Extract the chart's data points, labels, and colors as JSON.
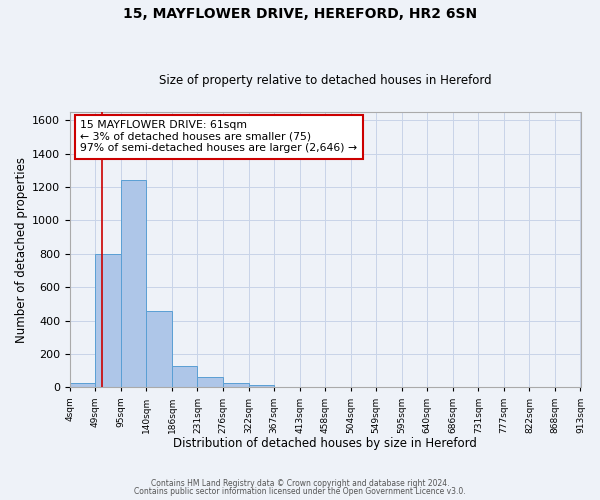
{
  "title1": "15, MAYFLOWER DRIVE, HEREFORD, HR2 6SN",
  "title2": "Size of property relative to detached houses in Hereford",
  "xlabel": "Distribution of detached houses by size in Hereford",
  "ylabel": "Number of detached properties",
  "bin_edges": [
    4,
    49,
    95,
    140,
    186,
    231,
    276,
    322,
    367,
    413,
    458,
    504,
    549,
    595,
    640,
    686,
    731,
    777,
    822,
    868,
    913
  ],
  "bin_counts": [
    25,
    800,
    1240,
    455,
    130,
    65,
    25,
    15,
    0,
    0,
    0,
    0,
    0,
    0,
    0,
    0,
    0,
    0,
    0,
    0
  ],
  "bar_color": "#aec6e8",
  "bar_edge_color": "#5a9fd4",
  "vline_color": "#cc0000",
  "vline_x": 61,
  "annotation_title": "15 MAYFLOWER DRIVE: 61sqm",
  "annotation_line1": "← 3% of detached houses are smaller (75)",
  "annotation_line2": "97% of semi-detached houses are larger (2,646) →",
  "annotation_box_color": "#ffffff",
  "annotation_box_edge_color": "#cc0000",
  "ylim": [
    0,
    1650
  ],
  "yticks": [
    0,
    200,
    400,
    600,
    800,
    1000,
    1200,
    1400,
    1600
  ],
  "xtick_labels": [
    "4sqm",
    "49sqm",
    "95sqm",
    "140sqm",
    "186sqm",
    "231sqm",
    "276sqm",
    "322sqm",
    "367sqm",
    "413sqm",
    "458sqm",
    "504sqm",
    "549sqm",
    "595sqm",
    "640sqm",
    "686sqm",
    "731sqm",
    "777sqm",
    "822sqm",
    "868sqm",
    "913sqm"
  ],
  "footer1": "Contains HM Land Registry data © Crown copyright and database right 2024.",
  "footer2": "Contains public sector information licensed under the Open Government Licence v3.0.",
  "background_color": "#eef2f8",
  "plot_bg_color": "#eef2f8",
  "grid_color": "#c8d4e8"
}
